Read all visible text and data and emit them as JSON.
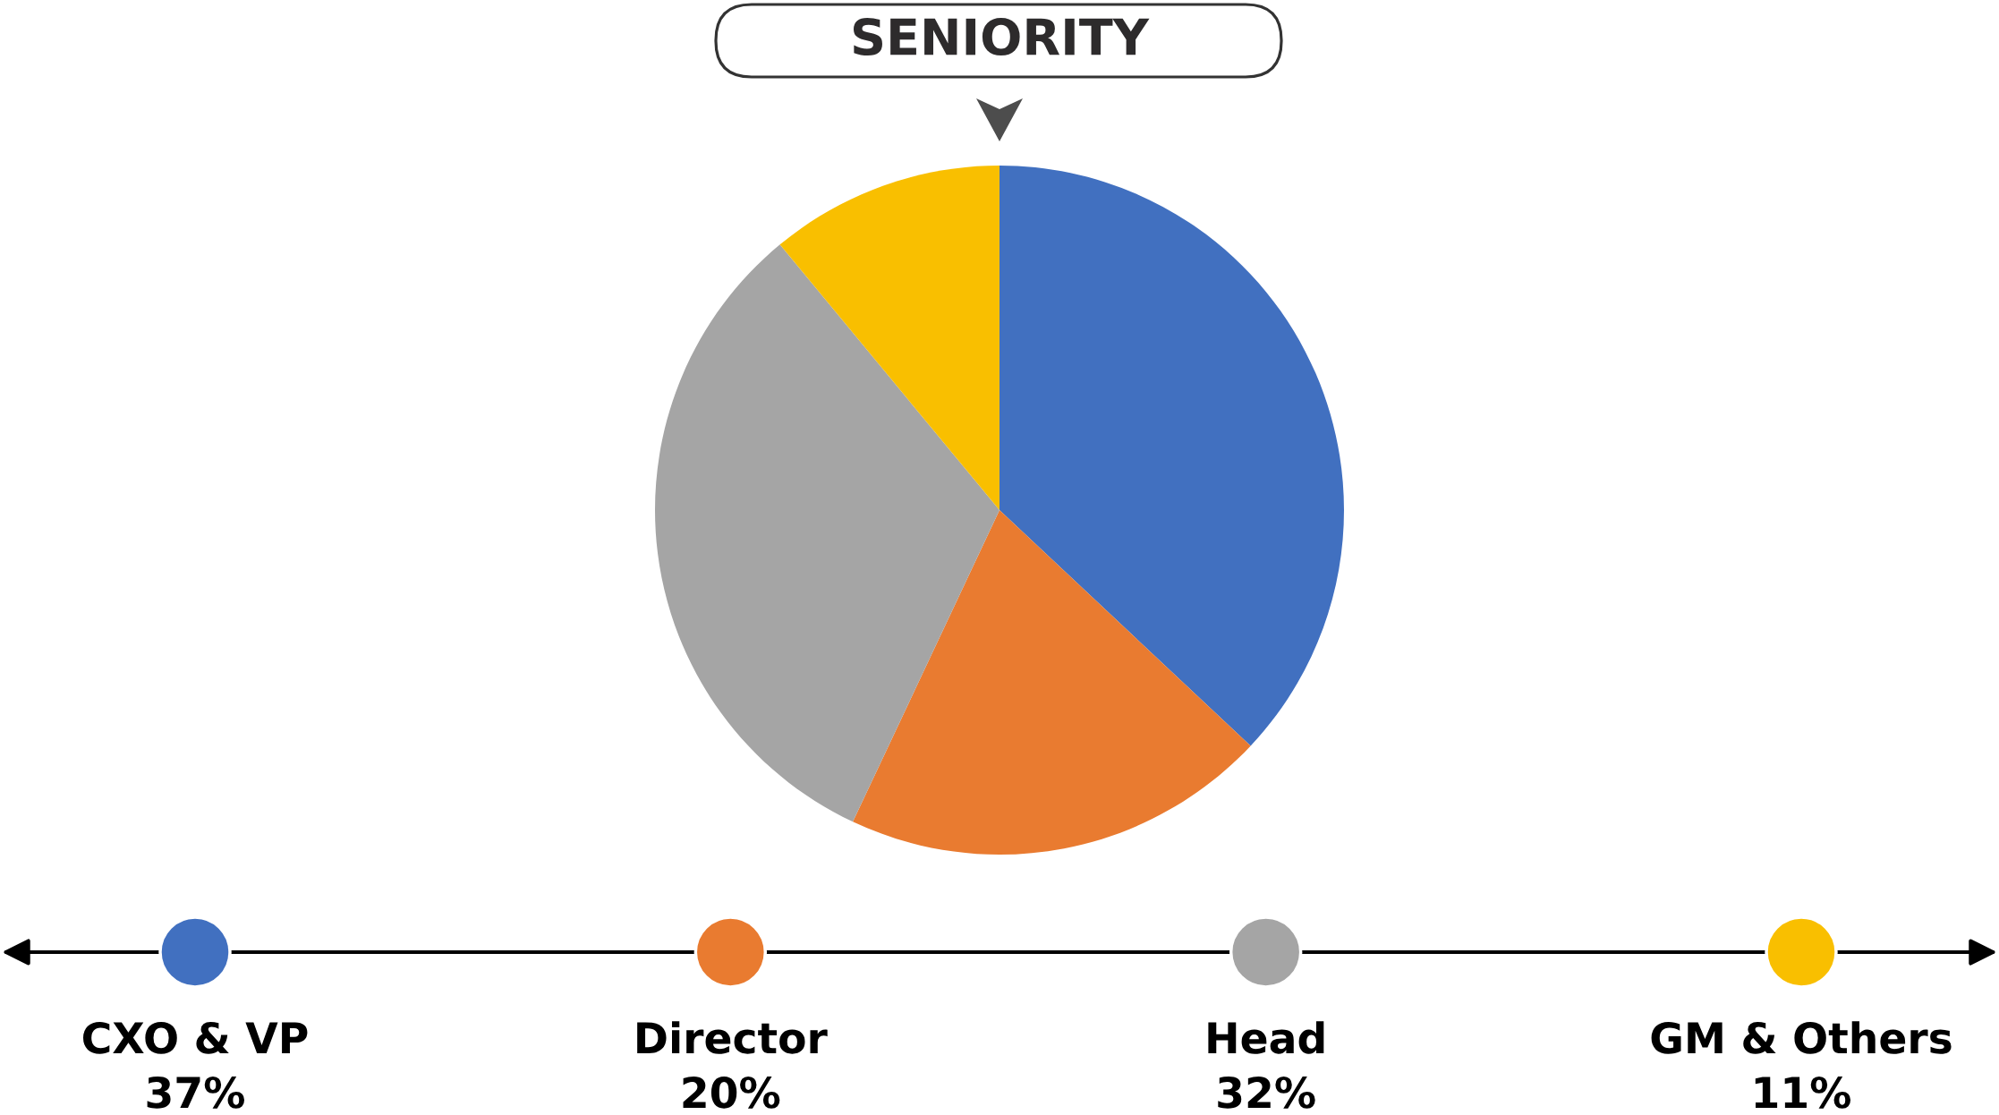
{
  "chart_data": {
    "type": "pie",
    "title": "SENIORITY",
    "categories": [
      "CXO & VP",
      "Director",
      "Head",
      "GM & Others"
    ],
    "values": [
      37,
      20,
      32,
      11
    ],
    "colors": [
      "#4170c0",
      "#e97b30",
      "#a5a5a5",
      "#f9bf00"
    ],
    "value_labels": [
      "37%",
      "20%",
      "32%",
      "11%"
    ],
    "legend": "bottom"
  }
}
